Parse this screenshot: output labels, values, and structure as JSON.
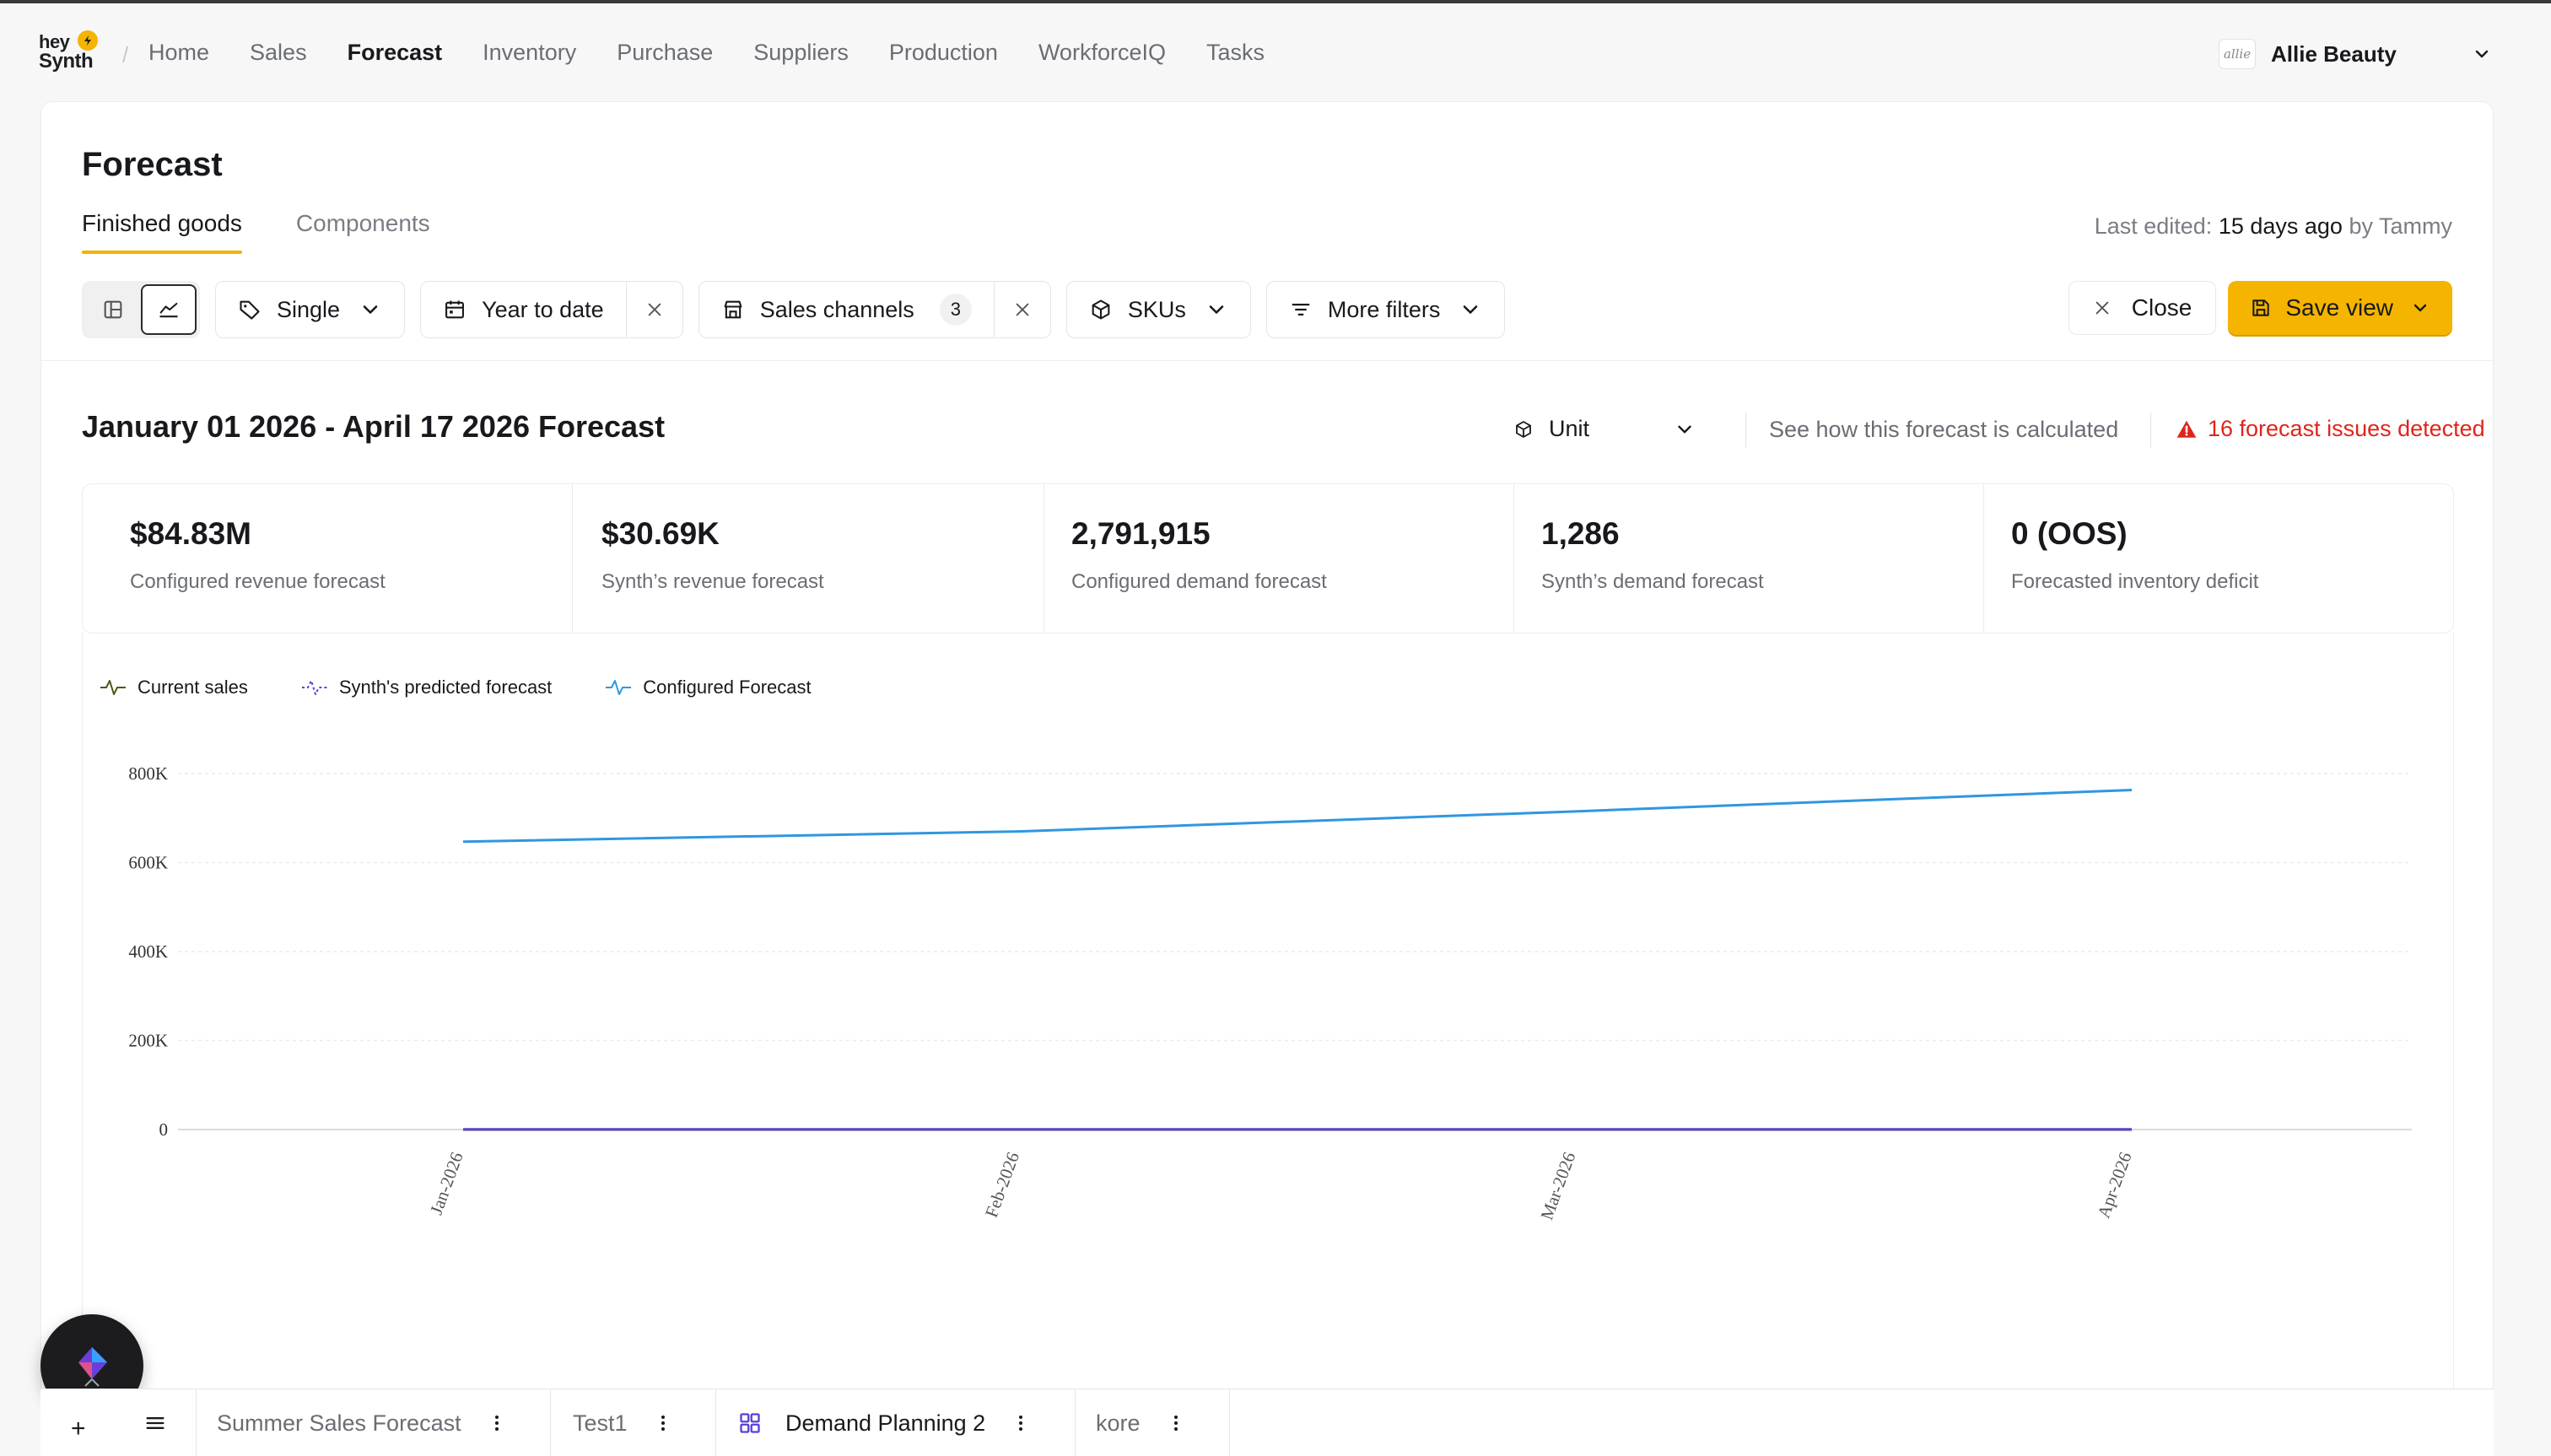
{
  "nav": {
    "logo_top": "hey",
    "logo_bottom": "Synth",
    "separator": "/",
    "items": [
      "Home",
      "Sales",
      "Forecast",
      "Inventory",
      "Purchase",
      "Suppliers",
      "Production",
      "WorkforceIQ",
      "Tasks"
    ],
    "active": "Forecast",
    "account_logo_text": "allie",
    "account_name": "Allie Beauty"
  },
  "page": {
    "title": "Forecast",
    "tabs": [
      "Finished goods",
      "Components"
    ],
    "active_tab": "Finished goods",
    "last_edited_prefix": "Last edited:",
    "last_edited_when": "15 days ago",
    "last_edited_by_word": "by",
    "last_edited_by": "Tammy"
  },
  "filters": {
    "single_label": "Single",
    "date_label": "Year to date",
    "channels_label": "Sales channels",
    "channels_count": "3",
    "skus_label": "SKUs",
    "more_label": "More filters",
    "close_label": "Close",
    "save_label": "Save view"
  },
  "section": {
    "range_title": "January 01 2026 - April 17 2026 Forecast",
    "unit_label": "Unit",
    "calc_link": "See how this forecast is calculated",
    "issues_label": "16 forecast issues detected",
    "issues_color": "#e0241b"
  },
  "kpis": [
    {
      "value": "$84.83M",
      "label": "Configured revenue forecast"
    },
    {
      "value": "$30.69K",
      "label": "Synth’s revenue forecast"
    },
    {
      "value": "2,791,915",
      "label": "Configured demand forecast"
    },
    {
      "value": "1,286",
      "label": "Synth’s demand forecast"
    },
    {
      "value": "0 (OOS)",
      "label": "Forecasted inventory deficit"
    }
  ],
  "chart_data": {
    "type": "line",
    "x": [
      "Jan-2026",
      "Feb-2026",
      "Mar-2026",
      "Apr-2026"
    ],
    "yticks": [
      "0",
      "200K",
      "400K",
      "600K",
      "800K"
    ],
    "ylim": [
      0,
      800000
    ],
    "grid": true,
    "legend_position": "top-left",
    "series": [
      {
        "name": "Current sales",
        "color": "#4a5a1a",
        "values": [
          0,
          0,
          0,
          0
        ]
      },
      {
        "name": "Synth's predicted forecast",
        "color": "#5b3fd8",
        "values": [
          400,
          400,
          400,
          400
        ]
      },
      {
        "name": "Configured Forecast",
        "color": "#2f97e0",
        "values": [
          647000,
          670000,
          715000,
          763000
        ]
      }
    ]
  },
  "bottom_tabs": [
    {
      "label": "Summer Sales Forecast",
      "active": false
    },
    {
      "label": "Test1",
      "active": false
    },
    {
      "label": "Demand Planning 2",
      "active": true
    },
    {
      "label": "kore",
      "active": false
    }
  ],
  "bottom_plus": "+",
  "colors": {
    "accent": "#f5b400",
    "configured_line": "#2f97e0",
    "synth_line": "#5b3fd8",
    "current_line": "#4a5a1a"
  }
}
